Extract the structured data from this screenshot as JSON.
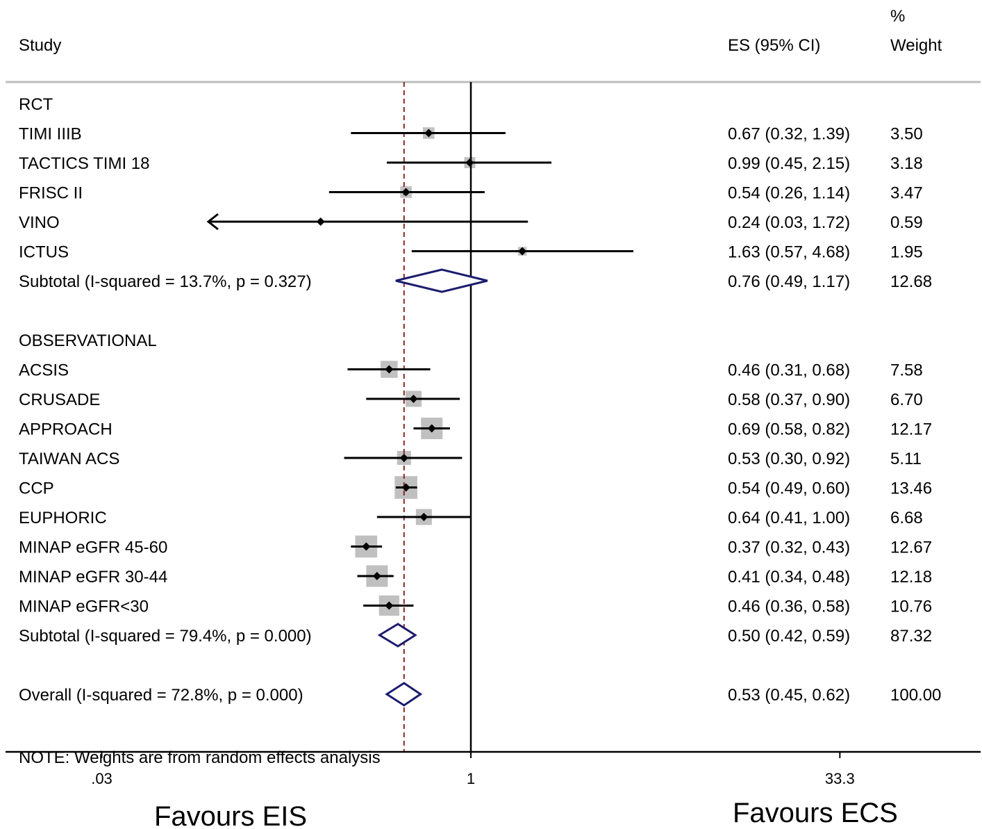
{
  "chart_data": {
    "type": "forest",
    "xscale": "log",
    "xlim": [
      0.01,
      100
    ],
    "null_line": 1,
    "overall_line": 0.53,
    "x_ticks": [
      {
        "value": 0.03,
        "label": ".03"
      },
      {
        "value": 1,
        "label": "1"
      },
      {
        "value": 33.3,
        "label": "33.3"
      }
    ],
    "headers": {
      "study": "Study",
      "es": "ES (95% CI)",
      "weight_pct": "%",
      "weight": "Weight"
    },
    "rows": [
      {
        "kind": "group",
        "label": "RCT"
      },
      {
        "kind": "study",
        "label": "TIMI IIIB",
        "es": 0.67,
        "lo": 0.32,
        "hi": 1.39,
        "es_text": "0.67 (0.32, 1.39)",
        "weight": 3.5,
        "weight_text": "3.50"
      },
      {
        "kind": "study",
        "label": "TACTICS TIMI 18",
        "es": 0.99,
        "lo": 0.45,
        "hi": 2.15,
        "es_text": "0.99 (0.45, 2.15)",
        "weight": 3.18,
        "weight_text": "3.18"
      },
      {
        "kind": "study",
        "label": "FRISC II",
        "es": 0.54,
        "lo": 0.26,
        "hi": 1.14,
        "es_text": "0.54 (0.26, 1.14)",
        "weight": 3.47,
        "weight_text": "3.47"
      },
      {
        "kind": "study",
        "label": "VINO",
        "es": 0.24,
        "lo": 0.03,
        "hi": 1.72,
        "es_text": "0.24 (0.03, 1.72)",
        "weight": 0.59,
        "weight_text": "0.59",
        "clipped_lo": true
      },
      {
        "kind": "study",
        "label": "ICTUS",
        "es": 1.63,
        "lo": 0.57,
        "hi": 4.68,
        "es_text": "1.63 (0.57, 4.68)",
        "weight": 1.95,
        "weight_text": "1.95"
      },
      {
        "kind": "subtotal",
        "label": "Subtotal  (I-squared = 13.7%, p = 0.327)",
        "es": 0.76,
        "lo": 0.49,
        "hi": 1.17,
        "es_text": "0.76 (0.49, 1.17)",
        "weight": 12.68,
        "weight_text": "12.68"
      },
      {
        "kind": "gap"
      },
      {
        "kind": "group",
        "label": "OBSERVATIONAL"
      },
      {
        "kind": "study",
        "label": "ACSIS",
        "es": 0.46,
        "lo": 0.31,
        "hi": 0.68,
        "es_text": "0.46 (0.31, 0.68)",
        "weight": 7.58,
        "weight_text": "7.58"
      },
      {
        "kind": "study",
        "label": "CRUSADE",
        "es": 0.58,
        "lo": 0.37,
        "hi": 0.9,
        "es_text": "0.58 (0.37, 0.90)",
        "weight": 6.7,
        "weight_text": "6.70"
      },
      {
        "kind": "study",
        "label": "APPROACH",
        "es": 0.69,
        "lo": 0.58,
        "hi": 0.82,
        "es_text": "0.69 (0.58, 0.82)",
        "weight": 12.17,
        "weight_text": "12.17"
      },
      {
        "kind": "study",
        "label": "TAIWAN ACS",
        "es": 0.53,
        "lo": 0.3,
        "hi": 0.92,
        "es_text": "0.53 (0.30, 0.92)",
        "weight": 5.11,
        "weight_text": "5.11"
      },
      {
        "kind": "study",
        "label": "CCP",
        "es": 0.54,
        "lo": 0.49,
        "hi": 0.6,
        "es_text": "0.54 (0.49, 0.60)",
        "weight": 13.46,
        "weight_text": "13.46"
      },
      {
        "kind": "study",
        "label": "EUPHORIC",
        "es": 0.64,
        "lo": 0.41,
        "hi": 1.0,
        "es_text": "0.64 (0.41, 1.00)",
        "weight": 6.68,
        "weight_text": "6.68"
      },
      {
        "kind": "study",
        "label": "MINAP eGFR 45-60",
        "es": 0.37,
        "lo": 0.32,
        "hi": 0.43,
        "es_text": "0.37 (0.32, 0.43)",
        "weight": 12.67,
        "weight_text": "12.67"
      },
      {
        "kind": "study",
        "label": "MINAP eGFR 30-44",
        "es": 0.41,
        "lo": 0.34,
        "hi": 0.48,
        "es_text": "0.41 (0.34, 0.48)",
        "weight": 12.18,
        "weight_text": "12.18"
      },
      {
        "kind": "study",
        "label": "MINAP eGFR<30",
        "es": 0.46,
        "lo": 0.36,
        "hi": 0.58,
        "es_text": "0.46 (0.36, 0.58)",
        "weight": 10.76,
        "weight_text": "10.76"
      },
      {
        "kind": "subtotal",
        "label": "Subtotal  (I-squared = 79.4%, p = 0.000)",
        "es": 0.5,
        "lo": 0.42,
        "hi": 0.59,
        "es_text": "0.50 (0.42, 0.59)",
        "weight": 87.32,
        "weight_text": "87.32"
      },
      {
        "kind": "gap"
      },
      {
        "kind": "overall",
        "label": "Overall  (I-squared = 72.8%, p = 0.000)",
        "es": 0.53,
        "lo": 0.45,
        "hi": 0.62,
        "es_text": "0.53 (0.45, 0.62)",
        "weight": 100.0,
        "weight_text": "100.00"
      },
      {
        "kind": "gap"
      },
      {
        "kind": "note",
        "label": "NOTE: Weights are from random effects analysis"
      }
    ],
    "favours_left": "Favours EIS",
    "favours_right": "Favours ECS"
  },
  "colors": {
    "weight_box": "#c0c0c0",
    "diamond": "#1c1c6e",
    "overall_line": "#8b2323",
    "rule": "#bdbdbd",
    "text": "#000000"
  }
}
